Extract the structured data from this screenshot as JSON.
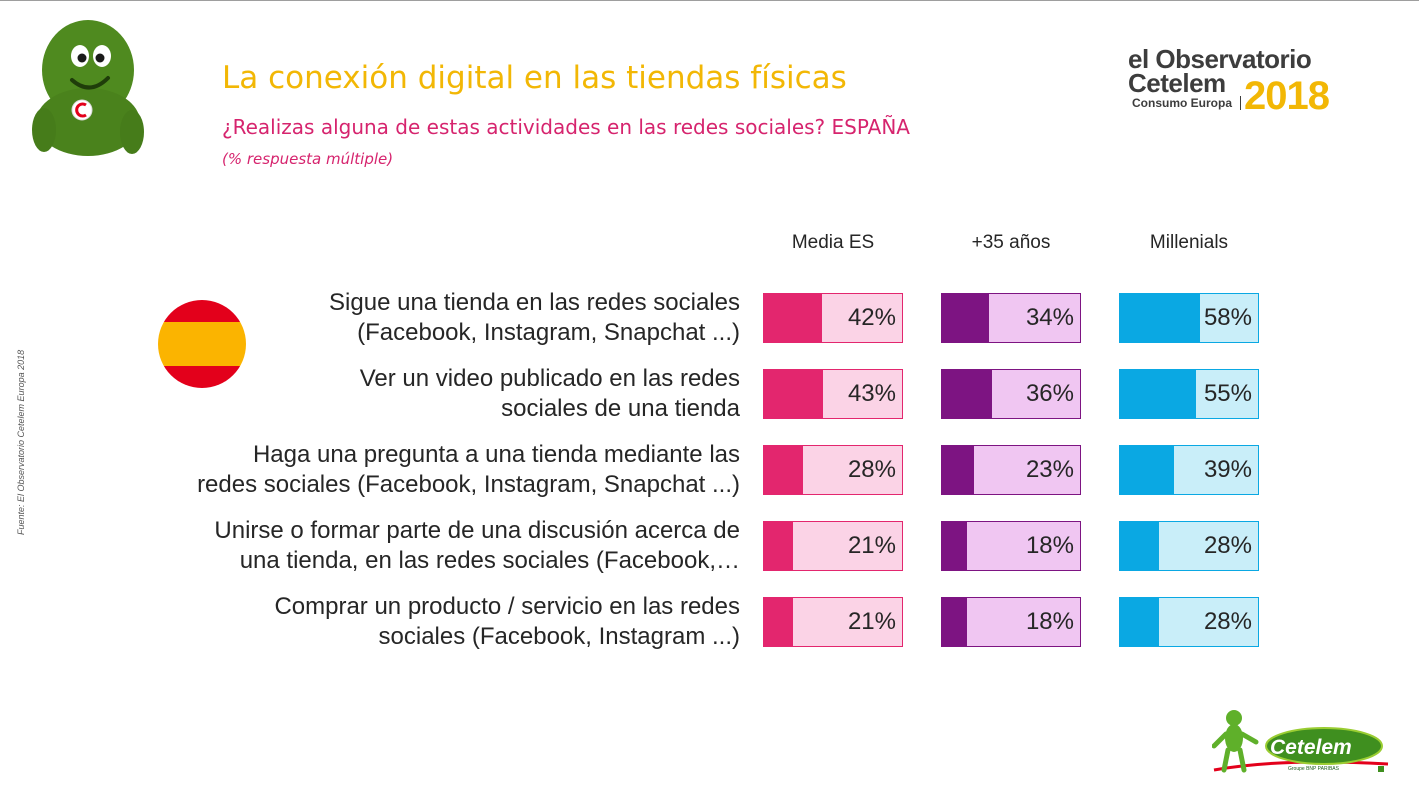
{
  "header": {
    "title": "La conexión digital en las tiendas físicas",
    "subtitle": "¿Realizas alguna de estas actividades en las redes sociales? ESPAÑA",
    "note": "(% respuesta múltiple)"
  },
  "logo": {
    "line1": "el Observatorio",
    "line2": "Cetelem",
    "line3": "Consumo Europa",
    "year": "2018"
  },
  "brand_logo": {
    "name": "Cetelem",
    "sub": "Groupe BNP PARIBAS"
  },
  "source": "Fuente: El Observatorio Cetelem Europa 2018",
  "icons": {
    "mascot": "green-mascot-icon",
    "flag": "spain-flag-icon"
  },
  "colors": {
    "title": "#f2b705",
    "subtitle": "#d6246e",
    "media_es": "#e3266e",
    "mas35": "#7d1482",
    "millenials": "#0aa8e3"
  },
  "chart_data": {
    "type": "bar",
    "orientation": "horizontal",
    "xlim": [
      0,
      100
    ],
    "categories": [
      [
        "Sigue una tienda en las redes sociales",
        "(Facebook, Instagram, Snapchat ...)"
      ],
      [
        "Ver un video publicado en las redes",
        "sociales de una tienda"
      ],
      [
        "Haga una pregunta a una tienda mediante las",
        "redes sociales (Facebook, Instagram, Snapchat ...)"
      ],
      [
        "Unirse o formar parte de una discusión acerca de",
        "una tienda, en las redes sociales (Facebook,…"
      ],
      [
        "Comprar un producto / servicio en las redes",
        "sociales (Facebook, Instagram ...)"
      ]
    ],
    "series": [
      {
        "name": "Media ES",
        "values": [
          42,
          43,
          28,
          21,
          21
        ],
        "labels": [
          "42%",
          "43%",
          "28%",
          "21%",
          "21%"
        ]
      },
      {
        "name": "+35 años",
        "values": [
          34,
          36,
          23,
          18,
          18
        ],
        "labels": [
          "34%",
          "36%",
          "23%",
          "18%",
          "18%"
        ]
      },
      {
        "name": "Millenials",
        "values": [
          58,
          55,
          39,
          28,
          28
        ],
        "labels": [
          "58%",
          "55%",
          "39%",
          "28%",
          "28%"
        ]
      }
    ]
  }
}
